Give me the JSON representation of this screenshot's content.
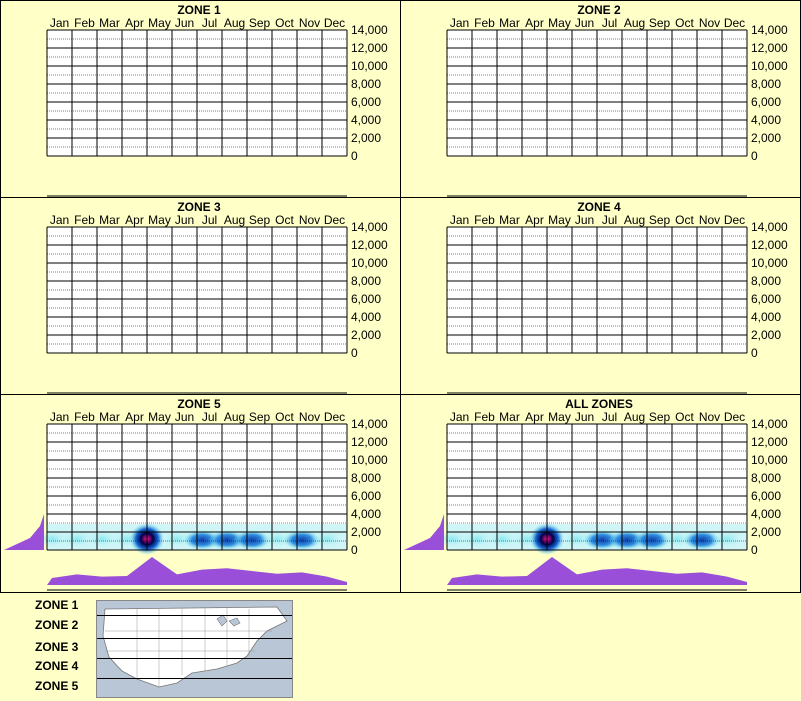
{
  "months": [
    "Jan",
    "Feb",
    "Mar",
    "Apr",
    "May",
    "Jun",
    "Jul",
    "Aug",
    "Sep",
    "Oct",
    "Nov",
    "Dec"
  ],
  "y_ticks": [
    "14,000",
    "12,000",
    "10,000",
    "8,000",
    "6,000",
    "4,000",
    "2,000",
    "0"
  ],
  "colors": {
    "background": "#ffffc8",
    "profile": "#9a4fd8",
    "density_low": "#7fe7f0",
    "density_mid": "#1a6bd6",
    "density_high": "#00004a",
    "peak": "#ff1493"
  },
  "chart_data": [
    {
      "type": "heatmap",
      "title": "ZONE 1",
      "ylim": [
        0,
        14000
      ],
      "has_data": false
    },
    {
      "type": "heatmap",
      "title": "ZONE 2",
      "ylim": [
        0,
        14000
      ],
      "has_data": false
    },
    {
      "type": "heatmap",
      "title": "ZONE 3",
      "ylim": [
        0,
        14000
      ],
      "has_data": false
    },
    {
      "type": "heatmap",
      "title": "ZONE 4",
      "ylim": [
        0,
        14000
      ],
      "has_data": false
    },
    {
      "type": "heatmap",
      "title": "ZONE 5",
      "ylim": [
        0,
        14000
      ],
      "has_data": true,
      "peak_month": "May",
      "elevation_range": [
        0,
        2000
      ],
      "monthly_profile": [
        0.25,
        0.38,
        0.3,
        0.32,
        1.0,
        0.38,
        0.55,
        0.6,
        0.5,
        0.4,
        0.45,
        0.3
      ]
    },
    {
      "type": "heatmap",
      "title": "ALL ZONES",
      "ylim": [
        0,
        14000
      ],
      "has_data": true,
      "peak_month": "May",
      "elevation_range": [
        0,
        2000
      ],
      "monthly_profile": [
        0.25,
        0.38,
        0.3,
        0.32,
        1.0,
        0.38,
        0.55,
        0.6,
        0.5,
        0.4,
        0.45,
        0.3
      ]
    }
  ],
  "legend": {
    "zones": [
      "ZONE 1",
      "ZONE 2",
      "ZONE 3",
      "ZONE 4",
      "ZONE 5"
    ]
  }
}
